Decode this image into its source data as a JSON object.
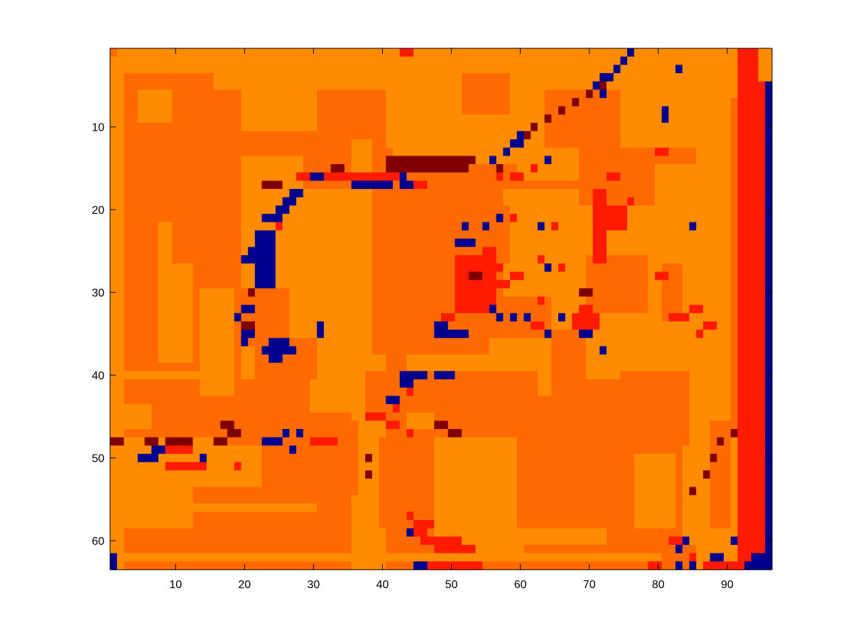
{
  "chart_data": {
    "type": "heatmap",
    "title": "",
    "xlabel": "",
    "ylabel": "",
    "n_cols": 96,
    "n_rows": 63,
    "xlim": [
      0.5,
      96.5
    ],
    "ylim": [
      0.5,
      63.5
    ],
    "y_reversed": true,
    "grid": false,
    "colorbar": false,
    "x_ticks": [
      10,
      20,
      30,
      40,
      50,
      60,
      70,
      80,
      90
    ],
    "y_ticks": [
      10,
      20,
      30,
      40,
      50,
      60
    ],
    "x_tick_labels": [
      "10",
      "20",
      "30",
      "40",
      "50",
      "60",
      "70",
      "80",
      "90"
    ],
    "y_tick_labels": [
      "10",
      "20",
      "30",
      "40",
      "50",
      "60"
    ],
    "levels": [
      {
        "value": 0,
        "color": "#00008f"
      },
      {
        "value": 1,
        "color": "#800000"
      },
      {
        "value": 2,
        "color": "#ff1a00"
      },
      {
        "value": 3,
        "color": "#ff6a00"
      },
      {
        "value": 4,
        "color": "#ff8c00"
      }
    ],
    "default_level": 3,
    "cells": [
      [
        1,
        1,
        63,
        17,
        3
      ],
      [
        18,
        1,
        63,
        35,
        3
      ],
      [
        36,
        1,
        63,
        43,
        3
      ],
      [
        44,
        1,
        63,
        63,
        3
      ],
      [
        64,
        1,
        63,
        80,
        3
      ],
      [
        81,
        1,
        63,
        90,
        3
      ],
      [
        1,
        1,
        3,
        15,
        4
      ],
      [
        16,
        1,
        5,
        40,
        4
      ],
      [
        41,
        1,
        12,
        90,
        4
      ],
      [
        1,
        1,
        63,
        2,
        4
      ],
      [
        3,
        44,
        46,
        6,
        4
      ],
      [
        3,
        49,
        58,
        12,
        4
      ],
      [
        13,
        49,
        53,
        22,
        4
      ],
      [
        20,
        1,
        10,
        30,
        4
      ],
      [
        36,
        12,
        63,
        38,
        4
      ],
      [
        39,
        45,
        63,
        40,
        4
      ],
      [
        50,
        1,
        10,
        70,
        4
      ],
      [
        60,
        10,
        16,
        68,
        4
      ],
      [
        80,
        15,
        26,
        85,
        4
      ],
      [
        86,
        1,
        63,
        90,
        4
      ],
      [
        1,
        61,
        63,
        2,
        4
      ],
      [
        2,
        62,
        62,
        45,
        4
      ],
      [
        46,
        62,
        62,
        80,
        4
      ],
      [
        1,
        56,
        56,
        30,
        4
      ],
      [
        3,
        40,
        40,
        15,
        4
      ],
      [
        5,
        48,
        48,
        17,
        4
      ],
      [
        20,
        14,
        40,
        28,
        4
      ],
      [
        28,
        18,
        38,
        36,
        4
      ],
      [
        30,
        38,
        44,
        40,
        4
      ],
      [
        44,
        38,
        46,
        56,
        4
      ],
      [
        56,
        36,
        42,
        64,
        4
      ],
      [
        65,
        20,
        34,
        80,
        4
      ],
      [
        42,
        8,
        14,
        62,
        4
      ],
      [
        58,
        18,
        30,
        68,
        4
      ],
      [
        70,
        34,
        40,
        86,
        4
      ],
      [
        48,
        48,
        62,
        60,
        4
      ],
      [
        60,
        52,
        60,
        72,
        4
      ],
      [
        72,
        50,
        58,
        82,
        4
      ],
      [
        84,
        20,
        60,
        88,
        4
      ],
      [
        8,
        22,
        38,
        12,
        4
      ],
      [
        14,
        30,
        42,
        18,
        4
      ],
      [
        5,
        6,
        9,
        9,
        4
      ],
      [
        3,
        48,
        50,
        14,
        4
      ],
      [
        1,
        1,
        1,
        1,
        3
      ],
      [
        10,
        22,
        26,
        12,
        3
      ],
      [
        20,
        30,
        36,
        26,
        3
      ],
      [
        30,
        46,
        54,
        36,
        3
      ],
      [
        38,
        40,
        44,
        48,
        3
      ],
      [
        46,
        20,
        26,
        58,
        3
      ],
      [
        22,
        36,
        40,
        30,
        3
      ],
      [
        40,
        48,
        58,
        44,
        3
      ],
      [
        48,
        40,
        46,
        62,
        3
      ],
      [
        60,
        48,
        58,
        76,
        3
      ],
      [
        70,
        26,
        32,
        78,
        3
      ],
      [
        75,
        40,
        48,
        84,
        3
      ],
      [
        64,
        6,
        12,
        74,
        3
      ],
      [
        52,
        4,
        8,
        58,
        3
      ],
      [
        88,
        46,
        58,
        90,
        3
      ],
      [
        92,
        1,
        63,
        94,
        2
      ],
      [
        95,
        5,
        63,
        95,
        2
      ],
      [
        91,
        1,
        6,
        91,
        4
      ],
      [
        95,
        1,
        4,
        96,
        4
      ],
      [
        96,
        5,
        63,
        96,
        0
      ],
      [
        94,
        62,
        63,
        95,
        0
      ],
      [
        88,
        62,
        62,
        89,
        0
      ],
      [
        91,
        48,
        62,
        91,
        4
      ],
      [
        43,
        1,
        1,
        44,
        2
      ],
      [
        41,
        14,
        14,
        53,
        1
      ],
      [
        41,
        15,
        15,
        52,
        1
      ],
      [
        43,
        16,
        16,
        43,
        0
      ],
      [
        28,
        16,
        16,
        42,
        2
      ],
      [
        36,
        17,
        17,
        41,
        0
      ],
      [
        43,
        17,
        17,
        44,
        0
      ],
      [
        45,
        17,
        17,
        46,
        2
      ],
      [
        33,
        15,
        15,
        34,
        1
      ],
      [
        30,
        16,
        16,
        31,
        0
      ],
      [
        23,
        17,
        17,
        25,
        1
      ],
      [
        27,
        18,
        18,
        28,
        0
      ],
      [
        26,
        19,
        19,
        27,
        0
      ],
      [
        25,
        20,
        20,
        26,
        0
      ],
      [
        23,
        21,
        21,
        25,
        0
      ],
      [
        25,
        22,
        22,
        25,
        2
      ],
      [
        22,
        23,
        23,
        24,
        0
      ],
      [
        22,
        24,
        24,
        24,
        0
      ],
      [
        21,
        25,
        25,
        24,
        0
      ],
      [
        20,
        26,
        26,
        24,
        0
      ],
      [
        22,
        27,
        27,
        24,
        0
      ],
      [
        22,
        28,
        28,
        24,
        0
      ],
      [
        22,
        29,
        29,
        24,
        0
      ],
      [
        21,
        30,
        30,
        21,
        1
      ],
      [
        20,
        32,
        32,
        21,
        0
      ],
      [
        19,
        33,
        33,
        19,
        0
      ],
      [
        20,
        34,
        34,
        21,
        1
      ],
      [
        20,
        35,
        35,
        21,
        0
      ],
      [
        20,
        36,
        36,
        20,
        0
      ],
      [
        24,
        36,
        36,
        26,
        0
      ],
      [
        23,
        37,
        37,
        27,
        0
      ],
      [
        24,
        38,
        38,
        25,
        0
      ],
      [
        31,
        34,
        34,
        31,
        0
      ],
      [
        31,
        35,
        35,
        31,
        0
      ],
      [
        48,
        34,
        34,
        49,
        0
      ],
      [
        48,
        35,
        35,
        49,
        0
      ],
      [
        49,
        33,
        33,
        50,
        2
      ],
      [
        43,
        40,
        40,
        46,
        0
      ],
      [
        48,
        40,
        40,
        50,
        0
      ],
      [
        43,
        41,
        41,
        44,
        0
      ],
      [
        44,
        42,
        42,
        44,
        2
      ],
      [
        41,
        43,
        43,
        42,
        0
      ],
      [
        42,
        44,
        44,
        42,
        2
      ],
      [
        38,
        45,
        45,
        40,
        2
      ],
      [
        41,
        46,
        46,
        42,
        2
      ],
      [
        44,
        47,
        47,
        44,
        2
      ],
      [
        17,
        46,
        46,
        18,
        1
      ],
      [
        18,
        47,
        47,
        19,
        1
      ],
      [
        16,
        48,
        48,
        17,
        1
      ],
      [
        23,
        48,
        48,
        25,
        0
      ],
      [
        26,
        47,
        47,
        26,
        0
      ],
      [
        28,
        47,
        47,
        28,
        0
      ],
      [
        30,
        48,
        48,
        33,
        2
      ],
      [
        9,
        48,
        48,
        12,
        1
      ],
      [
        1,
        48,
        48,
        2,
        1
      ],
      [
        6,
        48,
        48,
        7,
        1
      ],
      [
        7,
        49,
        49,
        8,
        0
      ],
      [
        9,
        49,
        49,
        12,
        2
      ],
      [
        5,
        50,
        50,
        7,
        0
      ],
      [
        14,
        50,
        50,
        14,
        0
      ],
      [
        9,
        51,
        51,
        14,
        2
      ],
      [
        19,
        51,
        51,
        19,
        2
      ],
      [
        27,
        49,
        49,
        27,
        0
      ],
      [
        38,
        50,
        50,
        38,
        1
      ],
      [
        38,
        52,
        52,
        38,
        1
      ],
      [
        48,
        46,
        46,
        49,
        1
      ],
      [
        50,
        47,
        47,
        51,
        1
      ],
      [
        44,
        57,
        57,
        44,
        2
      ],
      [
        45,
        58,
        58,
        47,
        2
      ],
      [
        45,
        59,
        59,
        46,
        2
      ],
      [
        46,
        60,
        60,
        51,
        2
      ],
      [
        48,
        61,
        61,
        53,
        2
      ],
      [
        44,
        59,
        59,
        44,
        0
      ],
      [
        45,
        63,
        63,
        46,
        0
      ],
      [
        47,
        63,
        63,
        54,
        2
      ],
      [
        1,
        62,
        62,
        1,
        0
      ],
      [
        1,
        63,
        63,
        1,
        0
      ],
      [
        57,
        1,
        1,
        58,
        4
      ],
      [
        76,
        1,
        1,
        76,
        0
      ],
      [
        75,
        2,
        2,
        75,
        0
      ],
      [
        74,
        3,
        3,
        74,
        0
      ],
      [
        72,
        4,
        4,
        73,
        0
      ],
      [
        71,
        5,
        5,
        71,
        0
      ],
      [
        72,
        5,
        5,
        72,
        1
      ],
      [
        70,
        6,
        6,
        70,
        1
      ],
      [
        72,
        6,
        6,
        72,
        0
      ],
      [
        68,
        7,
        7,
        68,
        1
      ],
      [
        66,
        8,
        8,
        66,
        1
      ],
      [
        64,
        9,
        9,
        64,
        1
      ],
      [
        62,
        10,
        10,
        62,
        1
      ],
      [
        61,
        11,
        11,
        61,
        1
      ],
      [
        59,
        12,
        12,
        60,
        0
      ],
      [
        58,
        13,
        13,
        58,
        0
      ],
      [
        56,
        14,
        14,
        56,
        0
      ],
      [
        57,
        15,
        15,
        57,
        1
      ],
      [
        59,
        16,
        16,
        59,
        1
      ],
      [
        60,
        11,
        11,
        60,
        0
      ],
      [
        57,
        16,
        16,
        57,
        2
      ],
      [
        83,
        3,
        3,
        83,
        0
      ],
      [
        81,
        8,
        8,
        81,
        0
      ],
      [
        81,
        9,
        9,
        81,
        0
      ],
      [
        80,
        13,
        13,
        81,
        2
      ],
      [
        76,
        19,
        19,
        76,
        2
      ],
      [
        72,
        20,
        22,
        75,
        2
      ],
      [
        71,
        18,
        26,
        72,
        2
      ],
      [
        73,
        16,
        16,
        74,
        2
      ],
      [
        85,
        22,
        22,
        85,
        0
      ],
      [
        63,
        22,
        22,
        63,
        0
      ],
      [
        65,
        22,
        22,
        65,
        2
      ],
      [
        52,
        22,
        22,
        52,
        0
      ],
      [
        55,
        22,
        22,
        55,
        0
      ],
      [
        51,
        24,
        24,
        53,
        0
      ],
      [
        51,
        26,
        32,
        56,
        2
      ],
      [
        53,
        28,
        28,
        54,
        1
      ],
      [
        55,
        25,
        25,
        56,
        2
      ],
      [
        56,
        27,
        27,
        57,
        2
      ],
      [
        57,
        29,
        29,
        58,
        2
      ],
      [
        59,
        28,
        28,
        60,
        2
      ],
      [
        63,
        26,
        26,
        63,
        2
      ],
      [
        64,
        27,
        27,
        64,
        0
      ],
      [
        66,
        27,
        27,
        66,
        2
      ],
      [
        69,
        30,
        30,
        70,
        1
      ],
      [
        57,
        33,
        33,
        57,
        0
      ],
      [
        59,
        33,
        33,
        59,
        0
      ],
      [
        61,
        33,
        33,
        61,
        0
      ],
      [
        66,
        33,
        33,
        66,
        0
      ],
      [
        62,
        34,
        34,
        63,
        2
      ],
      [
        64,
        35,
        35,
        64,
        0
      ],
      [
        69,
        35,
        35,
        70,
        0
      ],
      [
        72,
        37,
        37,
        72,
        0
      ],
      [
        63,
        31,
        31,
        63,
        2
      ],
      [
        68,
        33,
        34,
        71,
        2
      ],
      [
        69,
        32,
        32,
        70,
        2
      ],
      [
        56,
        32,
        32,
        56,
        0
      ],
      [
        50,
        35,
        35,
        52,
        0
      ],
      [
        57,
        21,
        21,
        57,
        0
      ],
      [
        59,
        21,
        21,
        59,
        2
      ],
      [
        59,
        16,
        16,
        60,
        2
      ],
      [
        62,
        15,
        15,
        62,
        2
      ],
      [
        64,
        14,
        14,
        64,
        0
      ],
      [
        80,
        28,
        28,
        81,
        2
      ],
      [
        82,
        33,
        33,
        84,
        2
      ],
      [
        85,
        32,
        32,
        86,
        2
      ],
      [
        87,
        34,
        34,
        88,
        2
      ],
      [
        86,
        35,
        35,
        86,
        2
      ],
      [
        91,
        47,
        47,
        91,
        1
      ],
      [
        89,
        48,
        48,
        89,
        1
      ],
      [
        88,
        50,
        50,
        88,
        1
      ],
      [
        87,
        52,
        52,
        87,
        1
      ],
      [
        85,
        54,
        54,
        85,
        1
      ],
      [
        84,
        60,
        60,
        84,
        0
      ],
      [
        82,
        60,
        60,
        83,
        2
      ],
      [
        83,
        61,
        61,
        83,
        0
      ],
      [
        85,
        62,
        62,
        85,
        2
      ],
      [
        83,
        63,
        63,
        83,
        0
      ],
      [
        85,
        63,
        63,
        85,
        0
      ],
      [
        93,
        63,
        63,
        95,
        0
      ],
      [
        87,
        63,
        63,
        91,
        2
      ],
      [
        79,
        63,
        63,
        80,
        2
      ],
      [
        91,
        60,
        60,
        91,
        0
      ],
      [
        88,
        62,
        62,
        88,
        0
      ]
    ]
  }
}
